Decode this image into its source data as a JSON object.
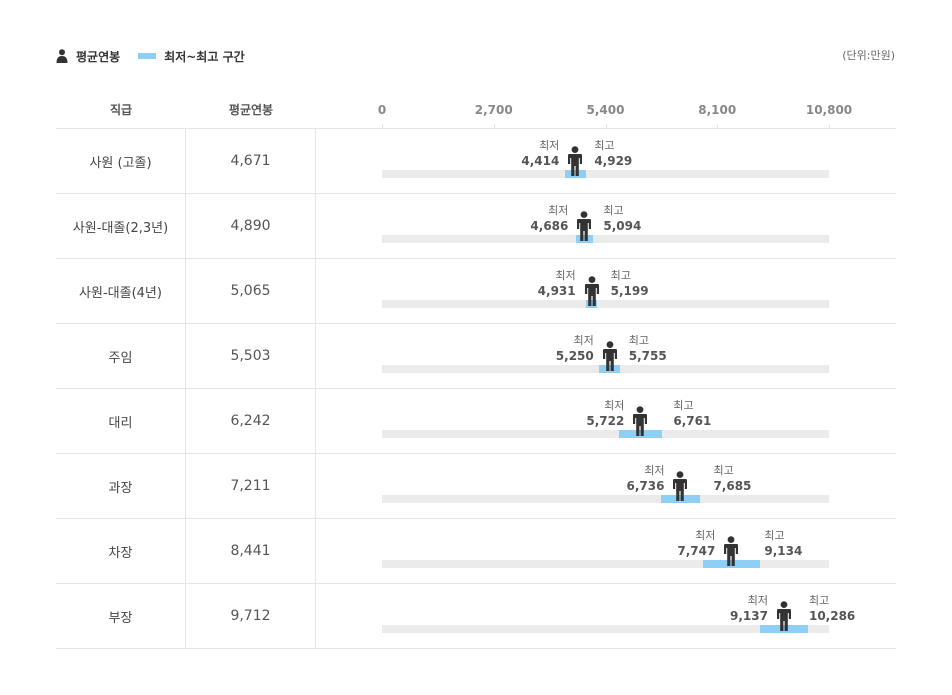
{
  "legend": {
    "average_label": "평균연봉",
    "range_label": "최저~최고 구간",
    "person_icon": "person-icon",
    "range_color": "#8ecff5"
  },
  "unit_label": "(단위:만원)",
  "table": {
    "col_grade": "직급",
    "col_avg": "평균연봉"
  },
  "labels": {
    "min": "최저",
    "max": "최고"
  },
  "chart_data": {
    "type": "range-bar",
    "title": "",
    "xlim": [
      0,
      10800
    ],
    "ticks": [
      0,
      2700,
      5400,
      8100,
      10800
    ],
    "tick_labels": [
      "0",
      "2,700",
      "5,400",
      "8,100",
      "10,800"
    ],
    "unit": "(단위:만원)",
    "colors": {
      "range": "#8ecff5",
      "track": "#ebebeb",
      "marker": "#333333"
    },
    "rows": [
      {
        "grade": "사원 (고졸)",
        "avg": 4671,
        "avg_label": "4,671",
        "min": 4414,
        "min_label": "4,414",
        "max": 4929,
        "max_label": "4,929"
      },
      {
        "grade": "사원-대졸(2,3년)",
        "avg": 4890,
        "avg_label": "4,890",
        "min": 4686,
        "min_label": "4,686",
        "max": 5094,
        "max_label": "5,094"
      },
      {
        "grade": "사원-대졸(4년)",
        "avg": 5065,
        "avg_label": "5,065",
        "min": 4931,
        "min_label": "4,931",
        "max": 5199,
        "max_label": "5,199"
      },
      {
        "grade": "주임",
        "avg": 5503,
        "avg_label": "5,503",
        "min": 5250,
        "min_label": "5,250",
        "max": 5755,
        "max_label": "5,755"
      },
      {
        "grade": "대리",
        "avg": 6242,
        "avg_label": "6,242",
        "min": 5722,
        "min_label": "5,722",
        "max": 6761,
        "max_label": "6,761"
      },
      {
        "grade": "과장",
        "avg": 7211,
        "avg_label": "7,211",
        "min": 6736,
        "min_label": "6,736",
        "max": 7685,
        "max_label": "7,685"
      },
      {
        "grade": "차장",
        "avg": 8441,
        "avg_label": "8,441",
        "min": 7747,
        "min_label": "7,747",
        "max": 9134,
        "max_label": "9,134"
      },
      {
        "grade": "부장",
        "avg": 9712,
        "avg_label": "9,712",
        "min": 9137,
        "min_label": "9,137",
        "max": 10286,
        "max_label": "10,286"
      }
    ]
  }
}
